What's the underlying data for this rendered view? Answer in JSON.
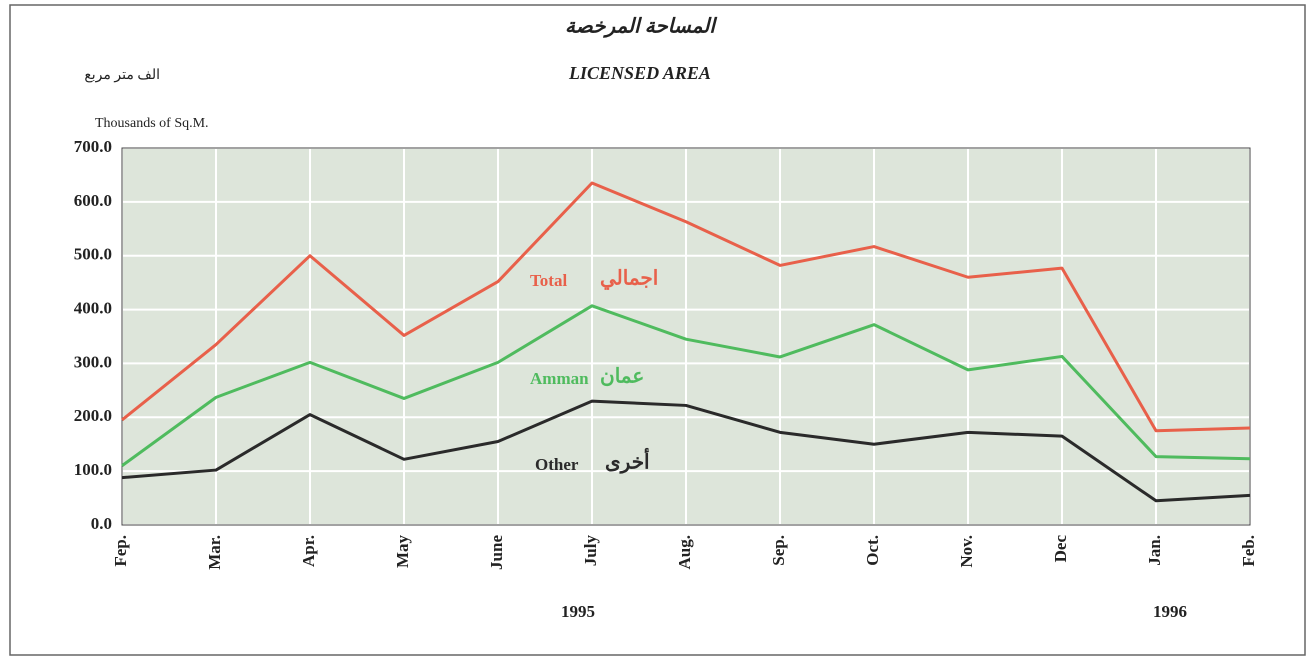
{
  "chart_data": {
    "type": "line",
    "title_ar": "المساحة المرخصة",
    "title": "LICENSED AREA",
    "ylabel_ar": "الف متر مربع",
    "ylabel": "Thousands of Sq.M.",
    "categories": [
      "Fep.",
      "Mar.",
      "Apr.",
      "May",
      "June",
      "July",
      "Aug.",
      "Sep.",
      "Oct.",
      "Nov.",
      "Dec",
      "Jan.",
      "Feb."
    ],
    "years": [
      "1995",
      "1996"
    ],
    "series": [
      {
        "name": "Total",
        "name_ar": "اجمالي",
        "color": "#e8604a",
        "values": [
          195,
          335,
          500,
          352,
          452,
          635,
          563,
          482,
          517,
          460,
          477,
          175,
          180
        ]
      },
      {
        "name": "Amman",
        "name_ar": "عمان",
        "color": "#4fbb5e",
        "values": [
          110,
          237,
          302,
          235,
          302,
          407,
          345,
          312,
          372,
          288,
          313,
          127,
          123
        ]
      },
      {
        "name": "Other",
        "name_ar": "أخرى",
        "color": "#2a2a2a",
        "values": [
          88,
          102,
          205,
          122,
          155,
          230,
          222,
          172,
          150,
          172,
          165,
          45,
          55
        ]
      }
    ],
    "ylim": [
      0,
      700
    ],
    "yticks": [
      {
        "value": 0,
        "label": "0.0"
      },
      {
        "value": 100,
        "label": "100.0"
      },
      {
        "value": 200,
        "label": "200.0"
      },
      {
        "value": 300,
        "label": "300.0"
      },
      {
        "value": 400,
        "label": "400.0"
      },
      {
        "value": 500,
        "label": "500.0"
      },
      {
        "value": 600,
        "label": "600.0"
      },
      {
        "value": 700,
        "label": "700.0"
      }
    ],
    "grid": true
  }
}
